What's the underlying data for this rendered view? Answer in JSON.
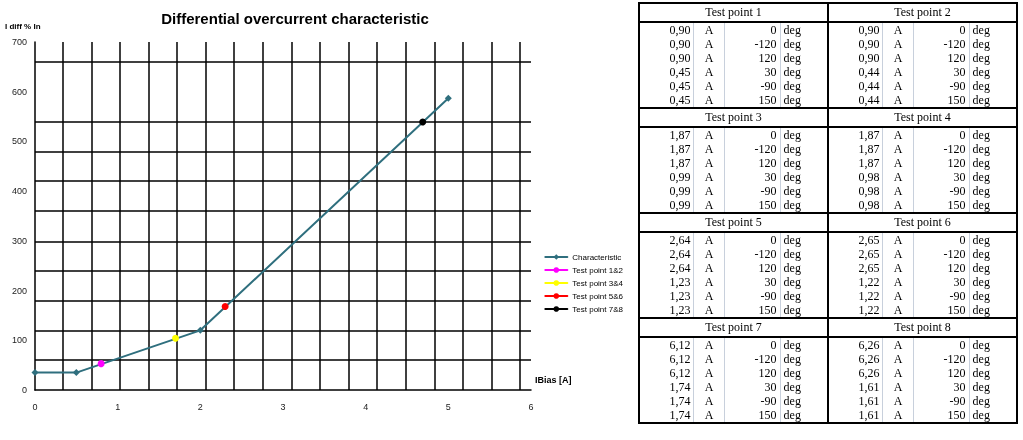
{
  "chart_data": [
    {
      "type": "line",
      "title": "Differential overcurrent characteristic",
      "xlabel": "IBias [A]",
      "ylabel": "I diff % In",
      "xlim": [
        0,
        6
      ],
      "xticks": [
        0,
        {
          "value": 0.34,
          "label": null
        },
        {
          "value": 0.69,
          "label": null
        },
        1,
        {
          "value": 1.03,
          "label": null
        },
        {
          "value": 1.38,
          "label": null
        },
        {
          "value": 1.72,
          "label": null
        },
        2,
        {
          "value": 2.07,
          "label": null
        },
        {
          "value": 2.41,
          "label": null
        },
        {
          "value": 2.76,
          "label": null
        },
        3,
        {
          "value": 3.1,
          "label": null
        },
        {
          "value": 3.45,
          "label": null
        },
        {
          "value": 3.79,
          "label": null
        },
        4,
        {
          "value": 4.14,
          "label": null
        },
        {
          "value": 4.48,
          "label": null
        },
        {
          "value": 4.83,
          "label": null
        },
        5,
        {
          "value": 5.17,
          "label": null
        },
        {
          "value": 5.52,
          "label": null
        },
        {
          "value": 5.86,
          "label": null
        },
        6
      ],
      "ylim": [
        0,
        700
      ],
      "yticks": [
        0,
        {
          "value": 60,
          "label": null
        },
        100,
        {
          "value": 120,
          "label": null
        },
        {
          "value": 180,
          "label": null
        },
        200,
        {
          "value": 240,
          "label": null
        },
        {
          "value": 299,
          "label": null
        },
        300,
        400,
        {
          "value": 360,
          "label": null
        },
        {
          "value": 420,
          "label": null
        },
        {
          "value": 480,
          "label": null
        },
        500,
        {
          "value": 540,
          "label": null
        },
        600,
        {
          "value": 660,
          "label": null
        },
        700
      ],
      "grid": true,
      "legend": "right",
      "series": [
        {
          "name": "Characteristic",
          "color": "#2f6f7e",
          "marker": "diamond",
          "x": [
            0,
            0.5,
            2,
            5
          ],
          "values": [
            35,
            35,
            120,
            587
          ]
        },
        {
          "name": "Test point 1&2",
          "color": "#ff00ff",
          "marker": "circle",
          "x": [
            0.8
          ],
          "values": [
            53
          ]
        },
        {
          "name": "Test point 3&4",
          "color": "#ffff00",
          "marker": "circle",
          "x": [
            1.7
          ],
          "values": [
            104
          ]
        },
        {
          "name": "Test point 5&6",
          "color": "#ff0000",
          "marker": "circle",
          "x": [
            2.3
          ],
          "values": [
            168
          ]
        },
        {
          "name": "Test point 7&8",
          "color": "#000000",
          "marker": "circle",
          "x": [
            4.69
          ],
          "values": [
            539
          ]
        }
      ]
    },
    {
      "type": "other",
      "annotations": [
        "Test point 1",
        "Test point 2",
        "0,90",
        "A",
        "0",
        "deg",
        "0,90",
        "A",
        "0",
        "deg",
        "0,90",
        "A",
        "-120",
        "deg",
        "0,90",
        "A",
        "-120",
        "deg",
        "0,90",
        "A",
        "120",
        "deg",
        "0,90",
        "A",
        "120",
        "deg",
        "0,45",
        "A",
        "30",
        "deg",
        "0,44",
        "A",
        "30",
        "deg",
        "0,45",
        "A",
        "-90",
        "deg",
        "0,44",
        "A",
        "-90",
        "deg",
        "0,45",
        "A",
        "150",
        "deg",
        "0,44",
        "A",
        "150",
        "deg",
        "Test point 3",
        "Test point 4",
        "1,87",
        "A",
        "0",
        "deg",
        "1,87",
        "A",
        "0",
        "deg",
        "1,87",
        "A",
        "-120",
        "deg",
        "1,87",
        "A",
        "-120",
        "deg",
        "1,87",
        "A",
        "120",
        "deg",
        "1,87",
        "A",
        "120",
        "deg",
        "0,99",
        "A",
        "30",
        "deg",
        "0,98",
        "A",
        "30",
        "deg",
        "0,99",
        "A",
        "-90",
        "deg",
        "0,98",
        "A",
        "-90",
        "deg",
        "0,99",
        "A",
        "150",
        "deg",
        "0,98",
        "A",
        "150",
        "deg",
        "Test point 5",
        "Test point 6",
        "2,64",
        "A",
        "0",
        "deg",
        "2,65",
        "A",
        "0",
        "deg",
        "2,64",
        "A",
        "-120",
        "deg",
        "2,65",
        "A",
        "-120",
        "deg",
        "2,64",
        "A",
        "120",
        "deg",
        "2,65",
        "A",
        "120",
        "deg",
        "1,23",
        "A",
        "30",
        "deg",
        "1,22",
        "A",
        "30",
        "deg",
        "1,23",
        "A",
        "-90",
        "deg",
        "1,22",
        "A",
        "-90",
        "deg",
        "1,23",
        "A",
        "150",
        "deg",
        "1,22",
        "A",
        "150",
        "deg",
        "Test point 7",
        "Test point 8",
        "6,12",
        "A",
        "0",
        "deg",
        "6,26",
        "A",
        "0",
        "deg",
        "6,12",
        "A",
        "-120",
        "deg",
        "6,26",
        "A",
        "-120",
        "deg",
        "6,12",
        "A",
        "120",
        "deg",
        "6,26",
        "A",
        "120",
        "deg",
        "1,74",
        "A",
        "30",
        "deg",
        "1,61",
        "A",
        "30",
        "deg",
        "1,74",
        "A",
        "-90",
        "deg",
        "1,61",
        "A",
        "-90",
        "deg",
        "1,74",
        "A",
        "150",
        "deg",
        "1,61",
        "A",
        "150",
        "deg"
      ]
    }
  ]
}
